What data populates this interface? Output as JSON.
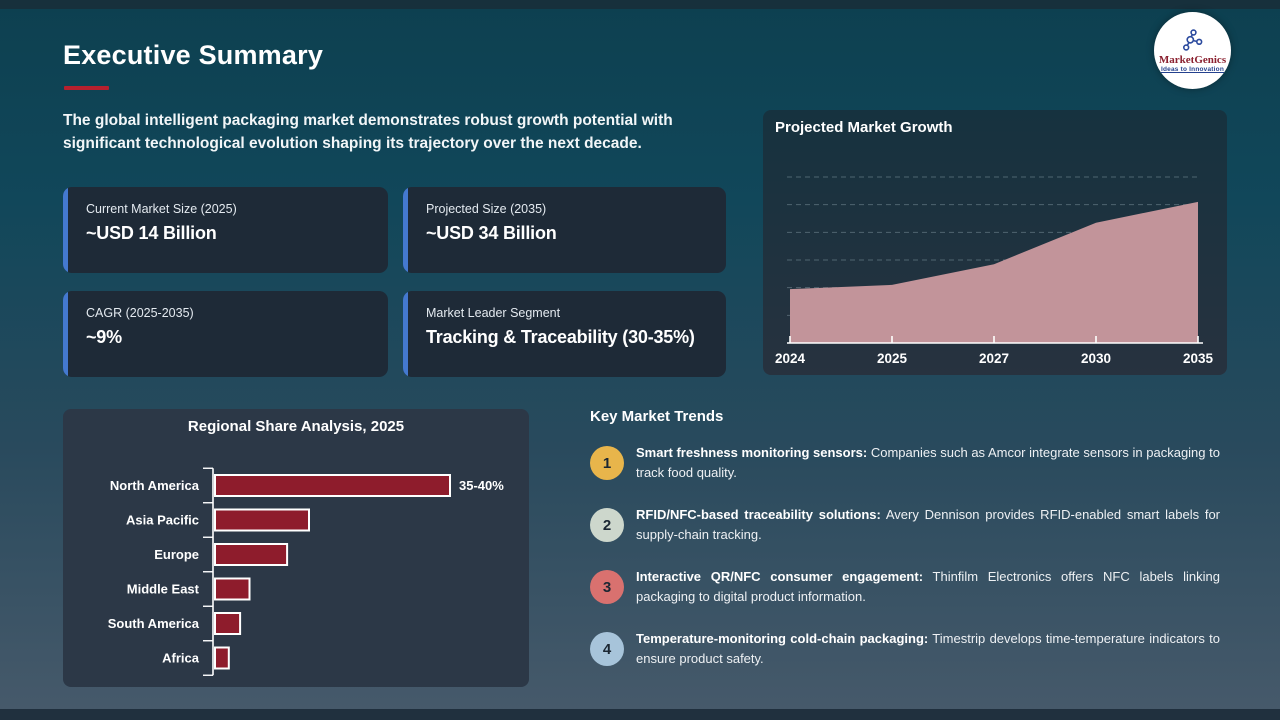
{
  "header": {
    "title": "Executive Summary",
    "intro": "The global intelligent packaging market demonstrates robust growth potential with significant technological evolution shaping its trajectory over the next decade."
  },
  "logo": {
    "name": "MarketGenics",
    "tagline": "Ideas to Innovation"
  },
  "stat_cards": [
    {
      "label": "Current Market Size (2025)",
      "value": "~USD 14 Billion"
    },
    {
      "label": "Projected Size (2035)",
      "value": "~USD 34 Billion"
    },
    {
      "label": "CAGR (2025-2035)",
      "value": "~9%"
    },
    {
      "label": "Market Leader Segment",
      "value": "Tracking & Traceability (30-35%)"
    }
  ],
  "chart_data": [
    {
      "type": "area",
      "title": "Projected Market Growth",
      "x": [
        "2024",
        "2025",
        "2027",
        "2030",
        "2035"
      ],
      "values": [
        13,
        14,
        19,
        29,
        34
      ],
      "unit": "USD Billion (estimated from plot; no y-axis labels shown)",
      "ylim": [
        0,
        40
      ],
      "grid": "dashed horizontal, 6 lines, unlabeled",
      "legend": "none",
      "fill_color": "#c2949a"
    },
    {
      "type": "bar",
      "title": "Regional Share Analysis, 2025",
      "orientation": "horizontal",
      "categories": [
        "North America",
        "Asia Pacific",
        "Europe",
        "Middle East",
        "South America",
        "Africa"
      ],
      "values": [
        37.5,
        15,
        11.5,
        5.5,
        4,
        2.2
      ],
      "data_labels": [
        "35-40%",
        "",
        "",
        "",
        "",
        ""
      ],
      "unit": "% share (only North America labeled; others estimated from bar lengths)",
      "xlim": [
        0,
        45
      ],
      "grid": "off",
      "legend": "none",
      "bar_color": "#8e1c2c",
      "bar_border": "#ffffff"
    }
  ],
  "trends": {
    "title": "Key Market Trends",
    "items": [
      {
        "num": "1",
        "color": "#e8b54b",
        "lead": "Smart freshness monitoring sensors:",
        "body": " Companies such as Amcor integrate sensors in packaging to track food quality."
      },
      {
        "num": "2",
        "color": "#cdd7cc",
        "lead": "RFID/NFC-based traceability solutions:",
        "body": " Avery Dennison provides RFID-enabled smart labels for supply-chain tracking."
      },
      {
        "num": "3",
        "color": "#d9716f",
        "lead": "Interactive QR/NFC consumer engagement:",
        "body": " Thinfilm Electronics offers NFC labels linking packaging to digital product information."
      },
      {
        "num": "4",
        "color": "#a7c4da",
        "lead": "Temperature-monitoring cold-chain packaging:",
        "body": " Timestrip develops time-temperature indicators to ensure product safety."
      }
    ]
  },
  "accents": {
    "title_underline": "#b7202e",
    "card_accent_blue": "#4479cf",
    "axis_color": "#ffffff",
    "gridline_color": "#8fa4ae"
  }
}
